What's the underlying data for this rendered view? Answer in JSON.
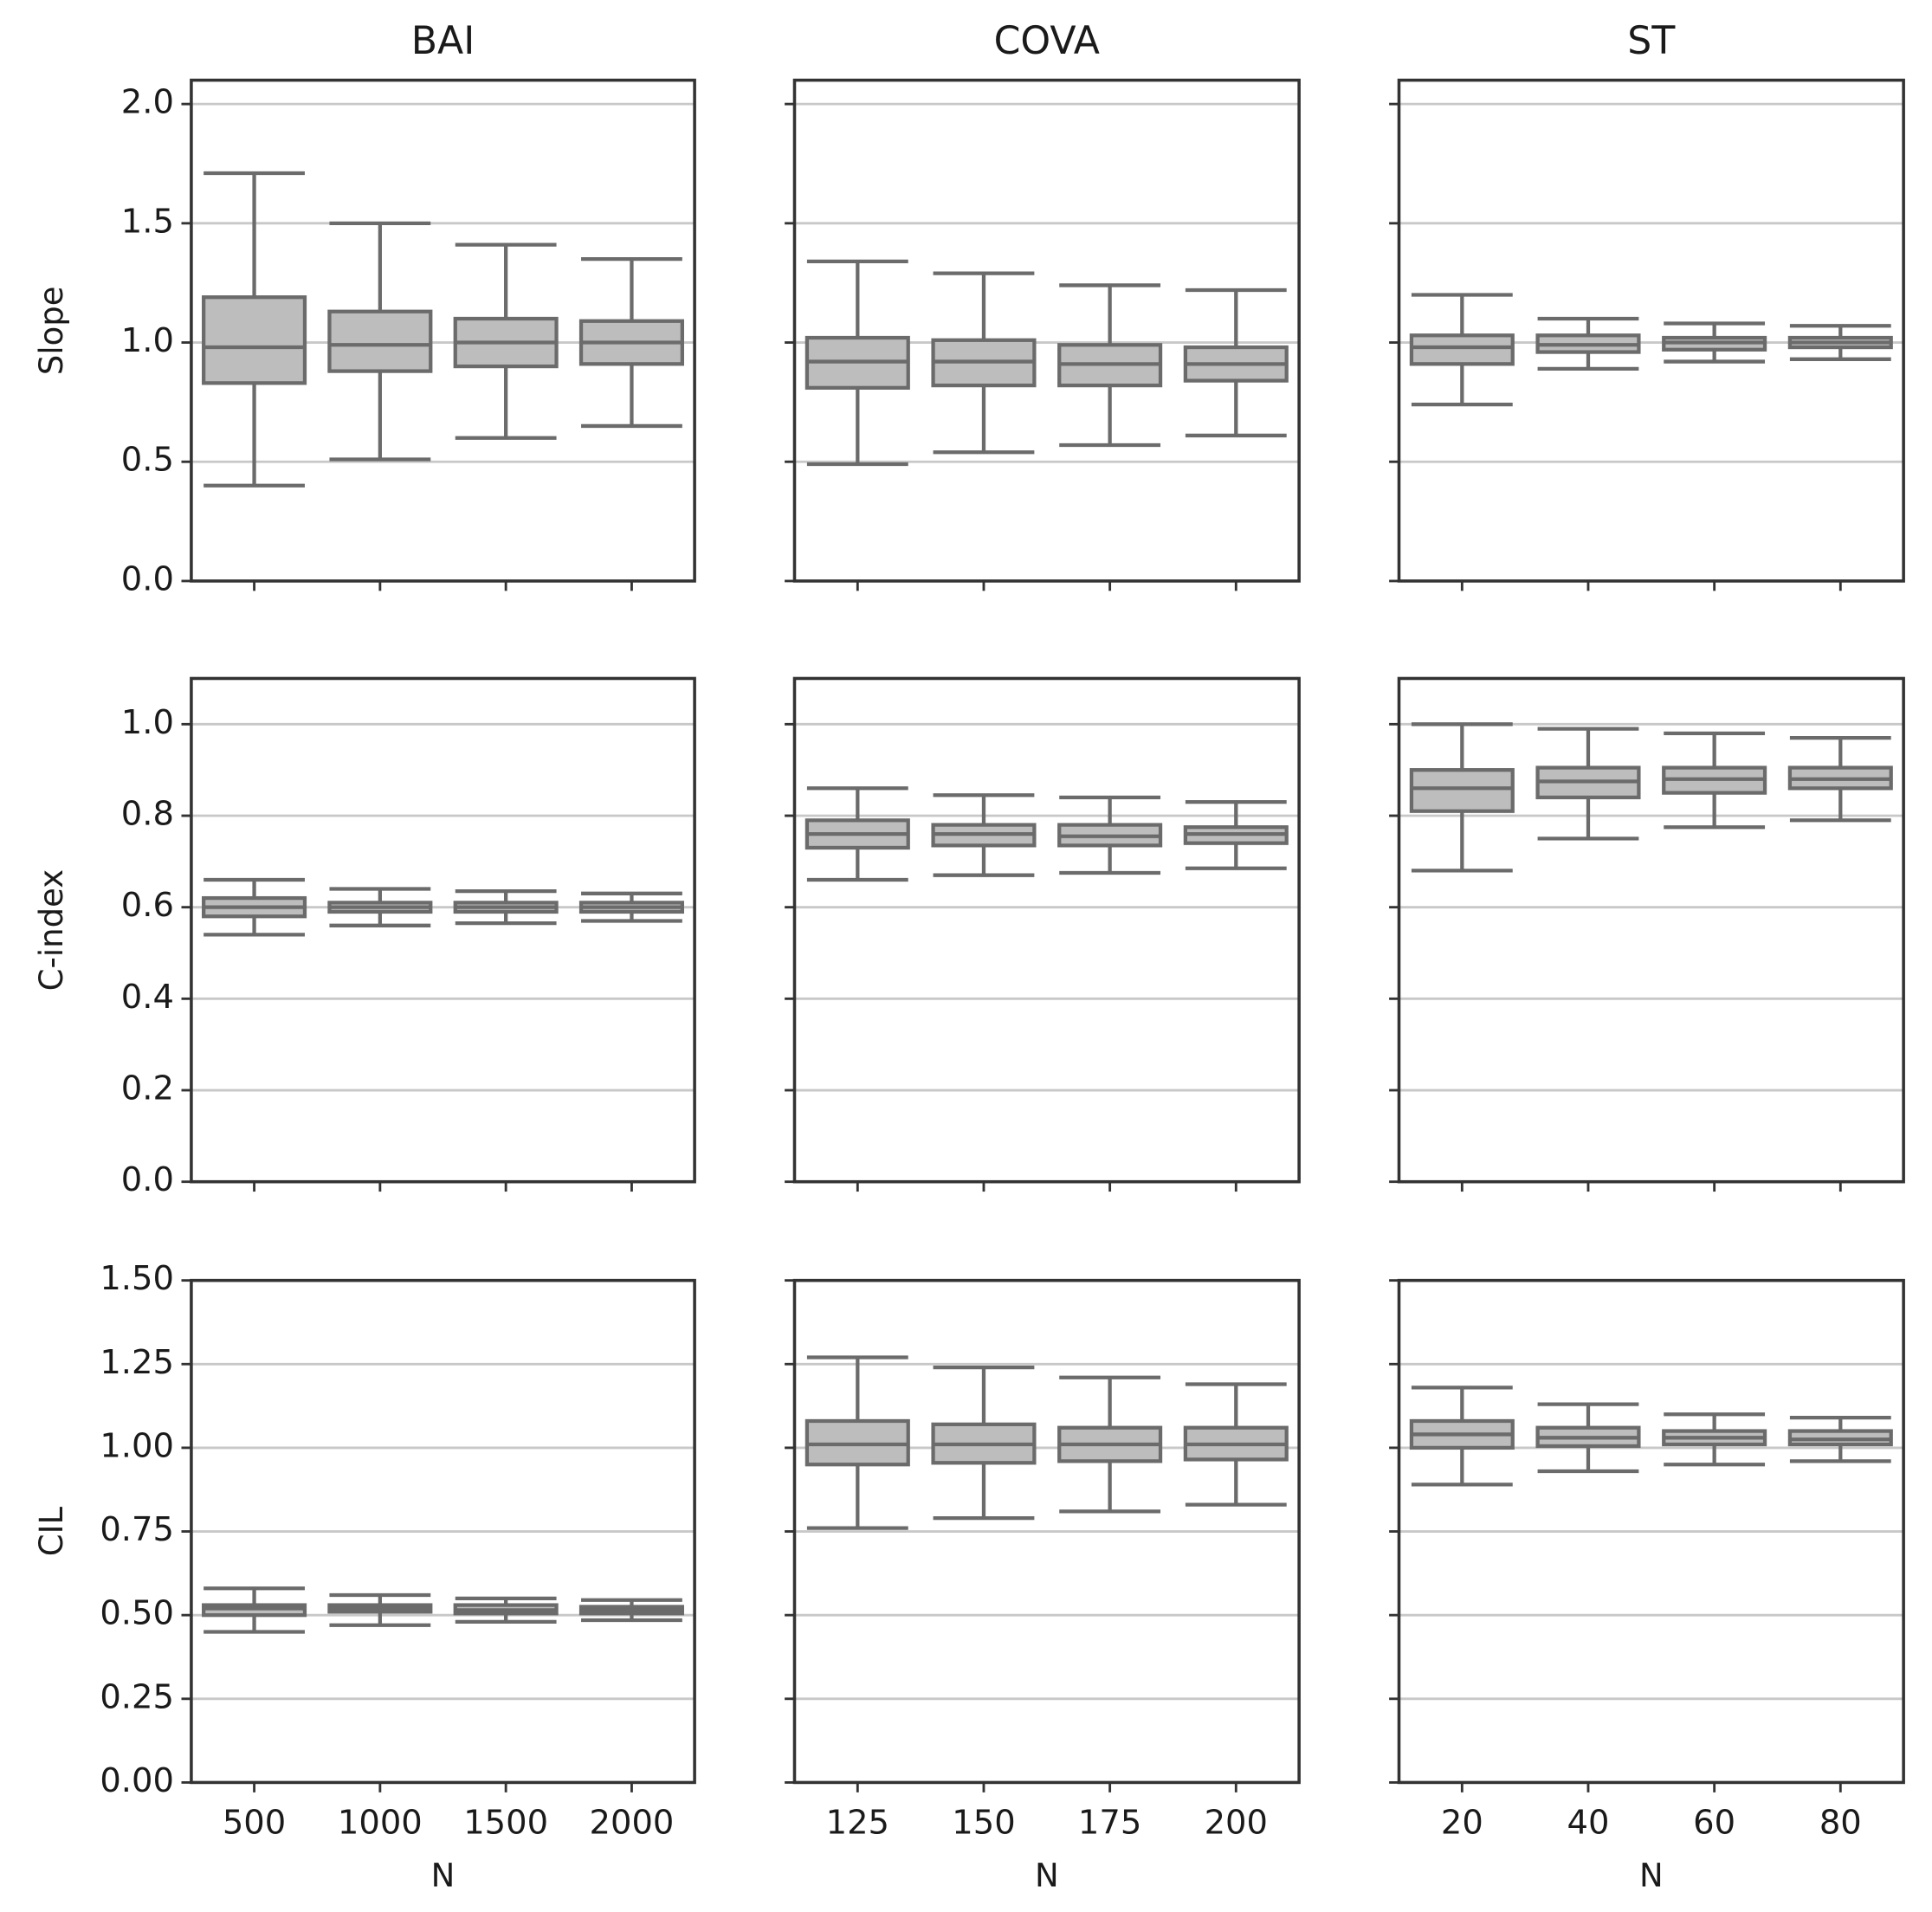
{
  "chart_data": {
    "type": "box",
    "color": "#bdbdbd",
    "edgecolor": "#6b6b6b",
    "grid": true,
    "columns": [
      {
        "title": "BAI",
        "categories": [
          "500",
          "1000",
          "1500",
          "2000"
        ],
        "xlabel": "N"
      },
      {
        "title": "COVA",
        "categories": [
          "125",
          "150",
          "175",
          "200"
        ],
        "xlabel": "N"
      },
      {
        "title": "ST",
        "categories": [
          "20",
          "40",
          "60",
          "80"
        ],
        "xlabel": "N"
      }
    ],
    "rows": [
      {
        "ylabel": "Slope",
        "ylim": [
          0,
          2.1
        ],
        "yticks": [
          {
            "value": 0,
            "label": "0.0"
          },
          0.5,
          {
            "value": 1,
            "label": "1.0"
          },
          1.5,
          {
            "value": 2,
            "label": "2.0"
          }
        ]
      },
      {
        "ylabel": "C-index",
        "ylim": [
          0,
          1.1
        ],
        "yticks": [
          {
            "value": 0,
            "label": "0.0"
          },
          0.2,
          0.4,
          0.6,
          0.8,
          {
            "value": 1,
            "label": "1.0"
          }
        ]
      },
      {
        "ylabel": "CIL",
        "ylim": [
          0,
          1.5
        ],
        "yticks": [
          {
            "value": 0,
            "label": "0.00"
          },
          0.25,
          {
            "value": 0.5,
            "label": "0.50"
          },
          0.75,
          {
            "value": 1,
            "label": "1.00"
          },
          1.25,
          {
            "value": 1.5,
            "label": "1.50"
          }
        ]
      }
    ],
    "panels": [
      [
        {
          "boxes": [
            {
              "whislo": 0.4,
              "q1": 0.83,
              "med": 0.98,
              "q3": 1.19,
              "whishi": 1.71
            },
            {
              "whislo": 0.51,
              "q1": 0.88,
              "med": 0.99,
              "q3": 1.13,
              "whishi": 1.5
            },
            {
              "whislo": 0.6,
              "q1": 0.9,
              "med": 1.0,
              "q3": 1.1,
              "whishi": 1.41
            },
            {
              "whislo": 0.65,
              "q1": 0.91,
              "med": 1.0,
              "q3": 1.09,
              "whishi": 1.35
            }
          ]
        },
        {
          "boxes": [
            {
              "whislo": 0.49,
              "q1": 0.81,
              "med": 0.92,
              "q3": 1.02,
              "whishi": 1.34
            },
            {
              "whislo": 0.54,
              "q1": 0.82,
              "med": 0.92,
              "q3": 1.01,
              "whishi": 1.29
            },
            {
              "whislo": 0.57,
              "q1": 0.82,
              "med": 0.91,
              "q3": 0.99,
              "whishi": 1.24
            },
            {
              "whislo": 0.61,
              "q1": 0.84,
              "med": 0.91,
              "q3": 0.98,
              "whishi": 1.22
            }
          ]
        },
        {
          "boxes": [
            {
              "whislo": 0.74,
              "q1": 0.91,
              "med": 0.98,
              "q3": 1.03,
              "whishi": 1.2
            },
            {
              "whislo": 0.89,
              "q1": 0.96,
              "med": 0.99,
              "q3": 1.03,
              "whishi": 1.1
            },
            {
              "whislo": 0.92,
              "q1": 0.97,
              "med": 1.0,
              "q3": 1.02,
              "whishi": 1.08
            },
            {
              "whislo": 0.93,
              "q1": 0.98,
              "med": 1.0,
              "q3": 1.02,
              "whishi": 1.07
            }
          ]
        }
      ],
      [
        {
          "boxes": [
            {
              "whislo": 0.54,
              "q1": 0.58,
              "med": 0.6,
              "q3": 0.62,
              "whishi": 0.66
            },
            {
              "whislo": 0.56,
              "q1": 0.59,
              "med": 0.6,
              "q3": 0.61,
              "whishi": 0.64
            },
            {
              "whislo": 0.565,
              "q1": 0.59,
              "med": 0.6,
              "q3": 0.61,
              "whishi": 0.635
            },
            {
              "whislo": 0.57,
              "q1": 0.59,
              "med": 0.6,
              "q3": 0.61,
              "whishi": 0.63
            }
          ]
        },
        {
          "boxes": [
            {
              "whislo": 0.66,
              "q1": 0.73,
              "med": 0.76,
              "q3": 0.79,
              "whishi": 0.86
            },
            {
              "whislo": 0.67,
              "q1": 0.735,
              "med": 0.76,
              "q3": 0.78,
              "whishi": 0.845
            },
            {
              "whislo": 0.675,
              "q1": 0.735,
              "med": 0.755,
              "q3": 0.78,
              "whishi": 0.84
            },
            {
              "whislo": 0.685,
              "q1": 0.74,
              "med": 0.76,
              "q3": 0.775,
              "whishi": 0.83
            }
          ]
        },
        {
          "boxes": [
            {
              "whislo": 0.68,
              "q1": 0.81,
              "med": 0.86,
              "q3": 0.9,
              "whishi": 1.0
            },
            {
              "whislo": 0.75,
              "q1": 0.84,
              "med": 0.875,
              "q3": 0.905,
              "whishi": 0.99
            },
            {
              "whislo": 0.775,
              "q1": 0.85,
              "med": 0.88,
              "q3": 0.905,
              "whishi": 0.98
            },
            {
              "whislo": 0.79,
              "q1": 0.86,
              "med": 0.88,
              "q3": 0.905,
              "whishi": 0.97
            }
          ]
        }
      ],
      [
        {
          "boxes": [
            {
              "whislo": 0.45,
              "q1": 0.5,
              "med": 0.52,
              "q3": 0.53,
              "whishi": 0.58
            },
            {
              "whislo": 0.47,
              "q1": 0.51,
              "med": 0.52,
              "q3": 0.53,
              "whishi": 0.56
            },
            {
              "whislo": 0.48,
              "q1": 0.505,
              "med": 0.515,
              "q3": 0.53,
              "whishi": 0.55
            },
            {
              "whislo": 0.485,
              "q1": 0.505,
              "med": 0.515,
              "q3": 0.525,
              "whishi": 0.545
            }
          ]
        },
        {
          "boxes": [
            {
              "whislo": 0.76,
              "q1": 0.95,
              "med": 1.01,
              "q3": 1.08,
              "whishi": 1.27
            },
            {
              "whislo": 0.79,
              "q1": 0.955,
              "med": 1.01,
              "q3": 1.07,
              "whishi": 1.24
            },
            {
              "whislo": 0.81,
              "q1": 0.96,
              "med": 1.01,
              "q3": 1.06,
              "whishi": 1.21
            },
            {
              "whislo": 0.83,
              "q1": 0.965,
              "med": 1.01,
              "q3": 1.06,
              "whishi": 1.19
            }
          ]
        },
        {
          "boxes": [
            {
              "whislo": 0.89,
              "q1": 1.0,
              "med": 1.04,
              "q3": 1.08,
              "whishi": 1.18
            },
            {
              "whislo": 0.93,
              "q1": 1.005,
              "med": 1.03,
              "q3": 1.06,
              "whishi": 1.13
            },
            {
              "whislo": 0.95,
              "q1": 1.01,
              "med": 1.03,
              "q3": 1.05,
              "whishi": 1.1
            },
            {
              "whislo": 0.96,
              "q1": 1.01,
              "med": 1.025,
              "q3": 1.05,
              "whishi": 1.09
            }
          ]
        }
      ]
    ]
  }
}
